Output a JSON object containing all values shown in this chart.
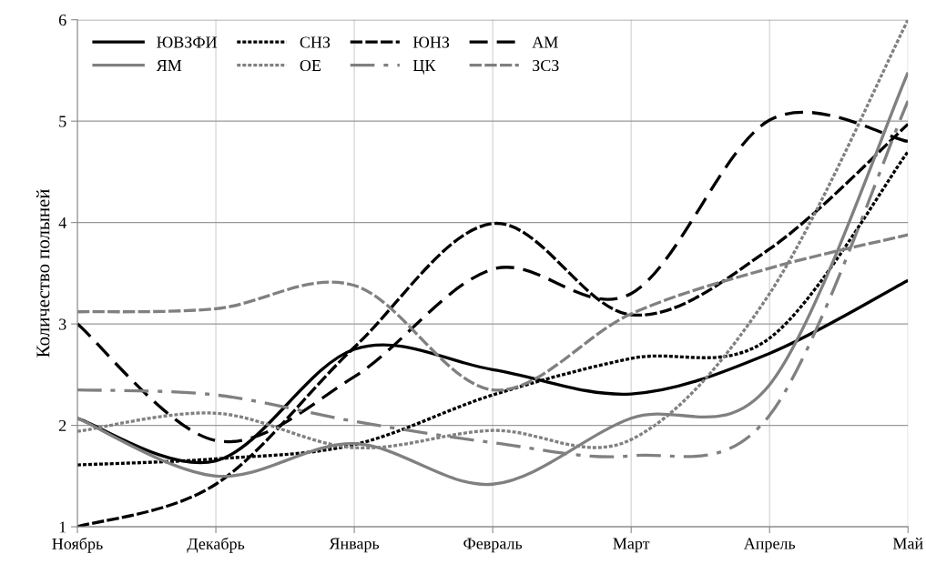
{
  "chart_data": {
    "type": "line",
    "ylabel": "Количество полыней",
    "categories": [
      "Ноябрь",
      "Декабрь",
      "Январь",
      "Февраль",
      "Март",
      "Апрель",
      "Май"
    ],
    "ylim": [
      1,
      6
    ],
    "yticks": [
      1,
      2,
      3,
      4,
      5,
      6
    ],
    "grid": true,
    "legend": "top left",
    "marker": "none",
    "series": [
      {
        "name": "ЮВЗФИ",
        "color": "#000000",
        "line_style": "solid",
        "values": [
          2.07,
          1.65,
          2.75,
          2.55,
          2.31,
          2.71,
          3.43
        ]
      },
      {
        "name": "СНЗ",
        "color": "#000000",
        "line_style": "dotted",
        "values": [
          1.61,
          1.67,
          1.81,
          2.3,
          2.66,
          2.86,
          4.7
        ]
      },
      {
        "name": "ЮНЗ",
        "color": "#000000",
        "line_style": "dashed",
        "values": [
          1.0,
          1.42,
          2.77,
          3.99,
          3.09,
          3.74,
          4.97
        ]
      },
      {
        "name": "АМ",
        "color": "#000000",
        "line_style": "longdash",
        "values": [
          3.0,
          1.85,
          2.48,
          3.54,
          3.3,
          5.01,
          4.8
        ]
      },
      {
        "name": "ЯМ",
        "color": "#808080",
        "line_style": "solid",
        "values": [
          2.07,
          1.5,
          1.82,
          1.42,
          2.07,
          2.4,
          5.48
        ]
      },
      {
        "name": "ОЕ",
        "color": "#808080",
        "line_style": "dotted",
        "values": [
          1.94,
          2.12,
          1.78,
          1.95,
          1.86,
          3.3,
          6.0
        ]
      },
      {
        "name": "ЦК",
        "color": "#808080",
        "line_style": "dashdot",
        "values": [
          2.35,
          2.3,
          2.04,
          1.83,
          1.7,
          2.1,
          5.2
        ]
      },
      {
        "name": "ЗСЗ",
        "color": "#808080",
        "line_style": "dashed",
        "values": [
          3.12,
          3.15,
          3.38,
          2.35,
          3.1,
          3.55,
          3.88
        ]
      }
    ]
  }
}
